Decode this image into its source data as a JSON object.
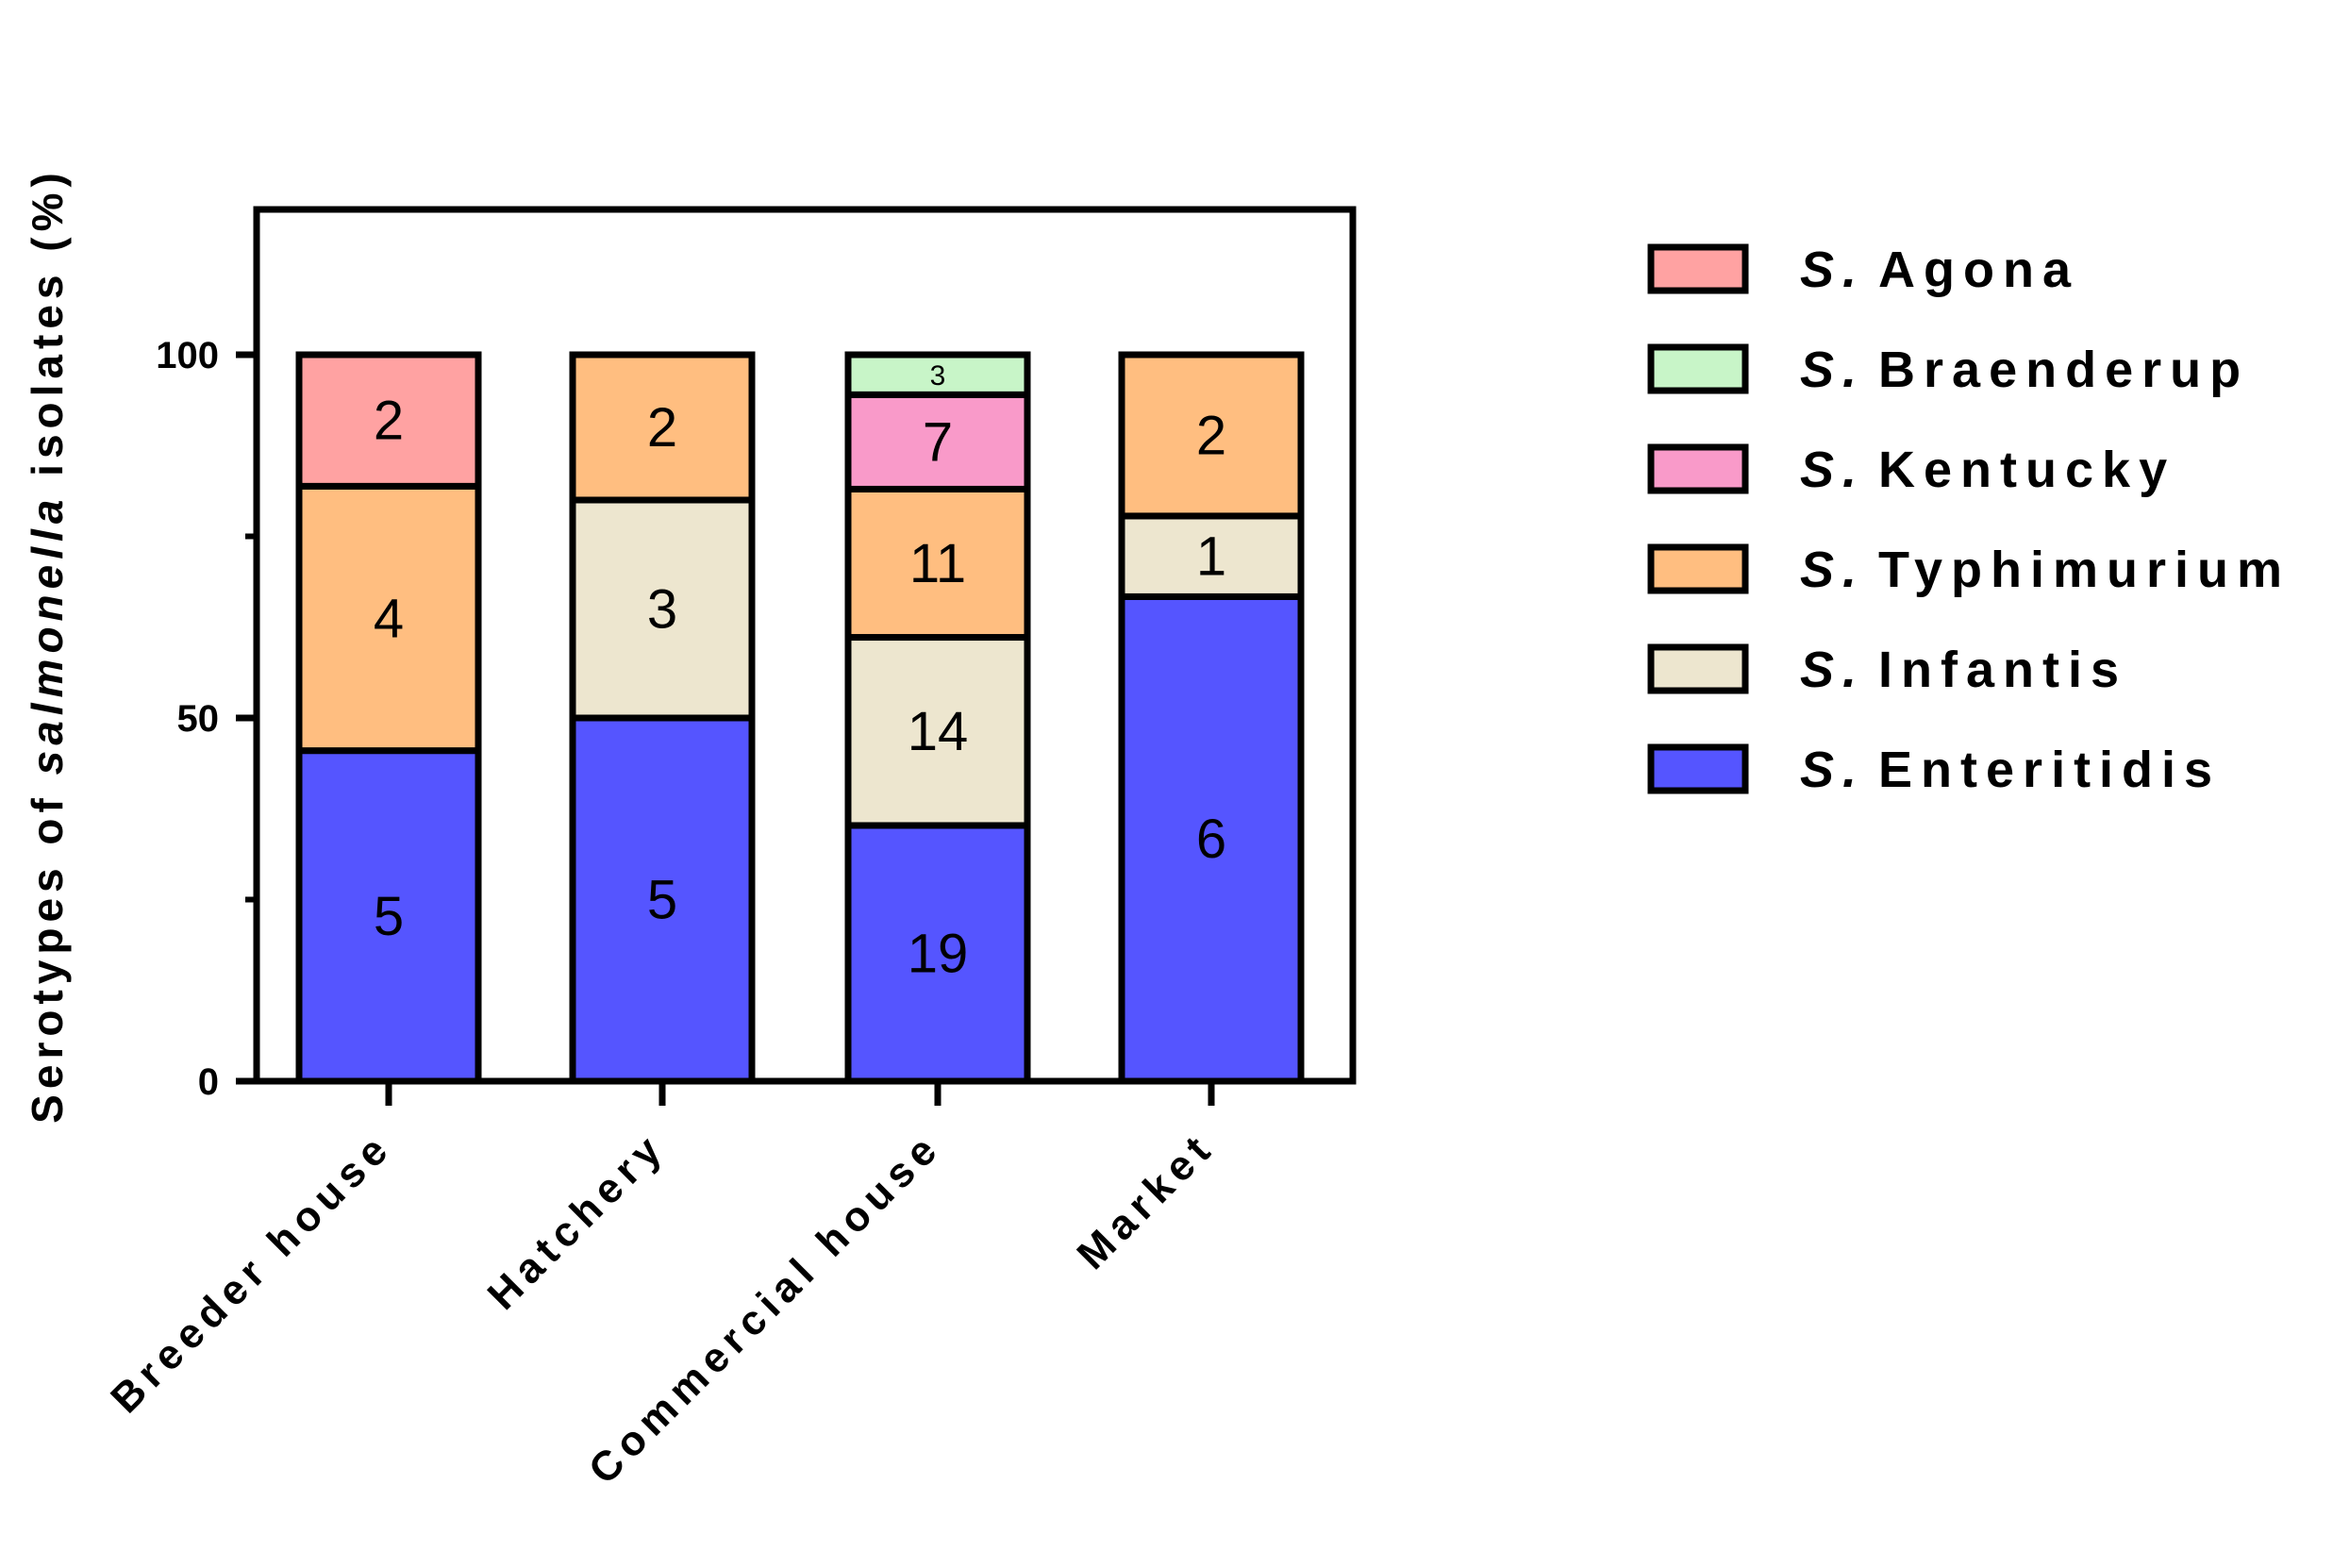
{
  "chart_data": {
    "type": "bar",
    "stacked": true,
    "percent": true,
    "categories": [
      "Breeder house",
      "Hatchery",
      "Commercial house",
      "Market"
    ],
    "series": [
      {
        "name": "S. Enteritidis",
        "name_prefix": "S.",
        "name_rest": "Enteritidis",
        "color": "#5555FF",
        "counts": [
          5,
          5,
          19,
          6
        ],
        "values": [
          45.5,
          50,
          35.2,
          66.7
        ]
      },
      {
        "name": "S. Infantis",
        "name_prefix": "S.",
        "name_rest": "Infantis",
        "color": "#EDE6CF",
        "counts": [
          0,
          3,
          14,
          1
        ],
        "values": [
          0,
          30,
          25.9,
          11.1
        ]
      },
      {
        "name": "S. Typhimurium",
        "name_prefix": "S.",
        "name_rest": "Typhimurium",
        "color": "#FFBE80",
        "counts": [
          4,
          2,
          11,
          2
        ],
        "values": [
          36.4,
          20,
          20.4,
          22.2
        ]
      },
      {
        "name": "S. Kentucky",
        "name_prefix": "S.",
        "name_rest": "Kentucky",
        "color": "#F99AC9",
        "counts": [
          0,
          0,
          7,
          0
        ],
        "values": [
          0,
          0,
          13,
          0
        ]
      },
      {
        "name": "S. Braenderup",
        "name_prefix": "S.",
        "name_rest": "Braenderup",
        "color": "#C8F5C8",
        "counts": [
          0,
          0,
          3,
          0
        ],
        "values": [
          0,
          0,
          5.5,
          0
        ]
      },
      {
        "name": "S. Agona",
        "name_prefix": "S.",
        "name_rest": "Agona",
        "color": "#FFA2A2",
        "counts": [
          2,
          0,
          0,
          0
        ],
        "values": [
          18.1,
          0,
          0,
          0
        ]
      }
    ],
    "legend_order": [
      "S. Agona",
      "S. Braenderup",
      "S. Kentucky",
      "S. Typhimurium",
      "S. Infantis",
      "S. Enteritidis"
    ],
    "ylabel_parts": [
      "Serotypes of ",
      "salmonella",
      " isolates (%)"
    ],
    "ylim": [
      0,
      120
    ],
    "yticks": [
      0,
      50,
      100
    ],
    "yticks_minor": [
      25,
      75
    ],
    "grid": false,
    "legend_position": "right"
  }
}
